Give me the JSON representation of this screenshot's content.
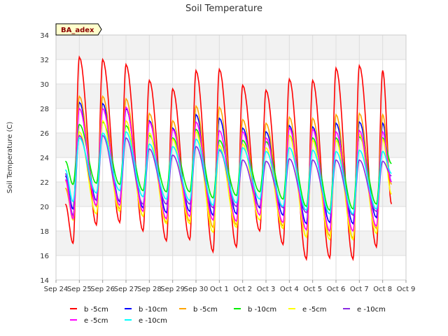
{
  "chart_data": {
    "type": "line",
    "title": "Soil Temperature",
    "ylabel": "Soil Temperature (C)",
    "xlabel": "",
    "site_label": "BA_adex",
    "ylim": [
      14,
      34
    ],
    "yticks": [
      14,
      16,
      18,
      20,
      22,
      24,
      26,
      28,
      30,
      32,
      34
    ],
    "xlim": [
      0,
      15
    ],
    "xticks": [
      0,
      1,
      2,
      3,
      4,
      5,
      6,
      7,
      8,
      9,
      10,
      11,
      12,
      13,
      14,
      15
    ],
    "xtick_labels": [
      "Sep 24",
      "Sep 25",
      "Sep 26",
      "Sep 27",
      "Sep 28",
      "Sep 29",
      "Sep 30",
      "Oct 1",
      "Oct 2",
      "Oct 3",
      "Oct 4",
      "Oct 5",
      "Oct 6",
      "Oct 7",
      "Oct 8",
      "Oct 9"
    ],
    "grid": true,
    "legend_position": "bottom",
    "day_centers": [
      1,
      2,
      3,
      4,
      5,
      6,
      7,
      8,
      9,
      10,
      11,
      12,
      13,
      14
    ],
    "series": [
      {
        "name": "b -5cm",
        "color": "#ff0000",
        "start": 20.2,
        "end": 20.2,
        "daily_max": [
          32.2,
          32.0,
          31.6,
          30.3,
          29.6,
          31.1,
          31.2,
          29.9,
          29.5,
          30.4,
          30.3,
          31.3,
          31.5,
          31.1
        ],
        "daily_min": [
          17.0,
          18.5,
          18.7,
          18.0,
          17.2,
          17.3,
          16.3,
          16.7,
          18.0,
          16.9,
          15.7,
          15.8,
          15.7,
          16.7
        ]
      },
      {
        "name": "b -10cm",
        "color": "#0000ff",
        "start": 22.5,
        "end": 22.0,
        "daily_max": [
          28.5,
          28.4,
          28.0,
          27.0,
          26.4,
          27.5,
          27.2,
          26.4,
          26.1,
          26.6,
          26.5,
          26.8,
          26.9,
          26.8
        ],
        "daily_min": [
          19.8,
          20.5,
          20.4,
          19.9,
          19.5,
          19.6,
          19.3,
          19.4,
          19.9,
          19.3,
          18.6,
          18.7,
          18.6,
          19.1
        ]
      },
      {
        "name": "b -5cm",
        "color": "#ffa500",
        "start": 21.5,
        "end": 21.8,
        "daily_max": [
          29.0,
          29.0,
          28.8,
          27.6,
          27.0,
          28.2,
          28.1,
          27.1,
          26.8,
          27.3,
          27.2,
          27.5,
          27.6,
          27.5
        ],
        "daily_min": [
          19.2,
          20.0,
          19.8,
          19.2,
          18.7,
          18.8,
          18.3,
          18.5,
          19.3,
          18.4,
          17.5,
          17.6,
          17.4,
          18.2
        ]
      },
      {
        "name": "b -10cm",
        "color": "#00ee00",
        "start": 23.7,
        "end": 23.5,
        "daily_max": [
          26.7,
          26.9,
          26.6,
          25.8,
          25.6,
          26.3,
          25.4,
          25.4,
          25.3,
          25.8,
          25.6,
          25.6,
          25.7,
          25.6
        ],
        "daily_min": [
          21.8,
          21.9,
          21.8,
          21.3,
          21.2,
          21.2,
          20.7,
          20.9,
          21.2,
          20.6,
          20.0,
          19.7,
          19.8,
          20.2
        ]
      },
      {
        "name": "e -5cm",
        "color": "#ffff00",
        "start": 22.1,
        "end": 21.0,
        "daily_max": [
          26.1,
          27.0,
          27.0,
          26.0,
          25.5,
          26.1,
          25.0,
          25.1,
          24.8,
          25.8,
          25.4,
          25.4,
          25.9,
          25.5
        ],
        "daily_min": [
          18.9,
          19.4,
          19.6,
          19.2,
          18.6,
          18.6,
          17.9,
          18.3,
          18.9,
          18.2,
          17.5,
          17.3,
          17.3,
          17.8
        ]
      },
      {
        "name": "e -10cm",
        "color": "#8a2be2",
        "start": 22.7,
        "end": 22.5,
        "daily_max": [
          25.8,
          25.8,
          25.6,
          24.7,
          24.2,
          24.9,
          24.6,
          23.8,
          23.7,
          23.9,
          23.8,
          23.8,
          23.8,
          23.7
        ],
        "daily_min": [
          19.3,
          20.5,
          20.5,
          20.2,
          20.2,
          20.2,
          19.9,
          20.0,
          20.0,
          19.9,
          19.5,
          19.4,
          19.3,
          19.6
        ]
      },
      {
        "name": "e -5cm",
        "color": "#ff00ff",
        "start": 22.2,
        "end": 22.0,
        "daily_max": [
          28.0,
          28.0,
          28.1,
          26.9,
          26.3,
          26.9,
          26.2,
          26.1,
          25.6,
          26.4,
          26.3,
          26.1,
          26.2,
          26.1
        ],
        "daily_min": [
          19.0,
          20.1,
          20.1,
          19.6,
          19.0,
          19.2,
          18.9,
          18.8,
          19.3,
          18.7,
          18.1,
          18.0,
          18.0,
          18.4
        ]
      },
      {
        "name": "e -10cm",
        "color": "#00ffff",
        "start": 23.0,
        "end": 22.7,
        "daily_max": [
          25.6,
          26.0,
          26.1,
          25.1,
          24.9,
          25.5,
          24.7,
          24.8,
          24.5,
          24.8,
          24.6,
          24.5,
          24.6,
          24.5
        ],
        "daily_min": [
          20.4,
          21.1,
          21.3,
          20.8,
          20.6,
          20.5,
          20.1,
          20.3,
          20.6,
          20.0,
          19.7,
          19.4,
          19.4,
          19.8
        ]
      }
    ]
  }
}
